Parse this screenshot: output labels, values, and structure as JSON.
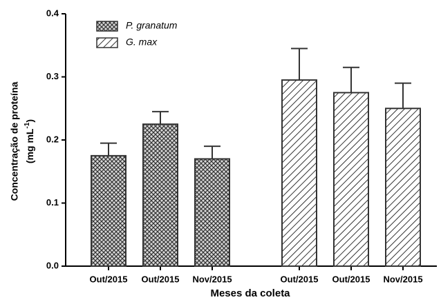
{
  "chart_data": {
    "type": "bar",
    "ylabel": "Concentração de proteína",
    "ylabel_unit": [
      "(mg mL",
      "-1",
      ")"
    ],
    "xlabel": "Meses da coleta",
    "categories": [
      "Out/2015",
      "Out/2015",
      "Nov/2015",
      "Out/2015",
      "Out/2015",
      "Nov/2015"
    ],
    "series": [
      {
        "name": "P. granatum",
        "color": "#333333",
        "pattern": "crosshatch",
        "values": [
          0.175,
          0.225,
          0.17,
          null,
          null,
          null
        ],
        "errors": [
          0.02,
          0.02,
          0.02,
          null,
          null,
          null
        ]
      },
      {
        "name": "G. max",
        "color": "#333333",
        "pattern": "diagonal",
        "values": [
          null,
          null,
          null,
          0.295,
          0.275,
          0.25
        ],
        "errors": [
          null,
          null,
          null,
          0.05,
          0.04,
          0.04
        ]
      }
    ],
    "ylim": [
      0,
      0.4
    ],
    "yticks": [
      {
        "value": 0,
        "label": "0.0"
      },
      0.1,
      0.2,
      0.3,
      0.4
    ],
    "legend": "top-left"
  }
}
